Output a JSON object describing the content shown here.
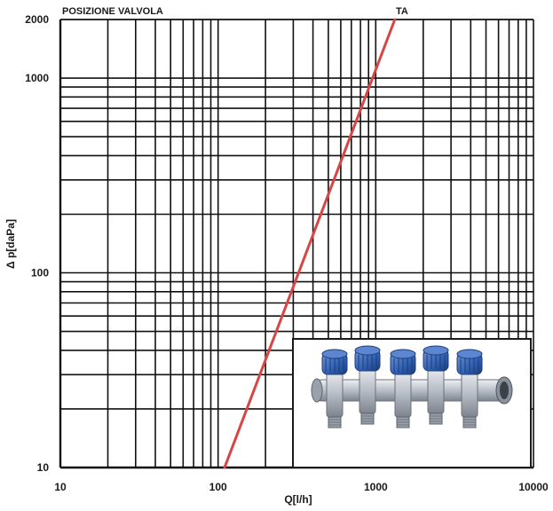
{
  "chart_data": {
    "type": "line",
    "title": "POSIZIONE VALVOLA",
    "xlabel": "Q[l/h]",
    "ylabel": "Δ p[daPa]",
    "x_scale": "log",
    "y_scale": "log",
    "xlim": [
      10,
      10000
    ],
    "ylim": [
      10,
      2000
    ],
    "x_ticks": [
      "10",
      "100",
      "1000",
      "10000"
    ],
    "y_ticks": [
      "10",
      "100",
      "1000",
      "2000"
    ],
    "grid": true,
    "series": [
      {
        "name": "TA",
        "color": "#d94545",
        "x": [
          110,
          1320
        ],
        "y": [
          10,
          2000
        ]
      }
    ]
  },
  "inset_image": {
    "subject": "manifold-photo-icon",
    "colors": {
      "knob": "#2f5fb0",
      "body": "#c7ccd3"
    }
  }
}
